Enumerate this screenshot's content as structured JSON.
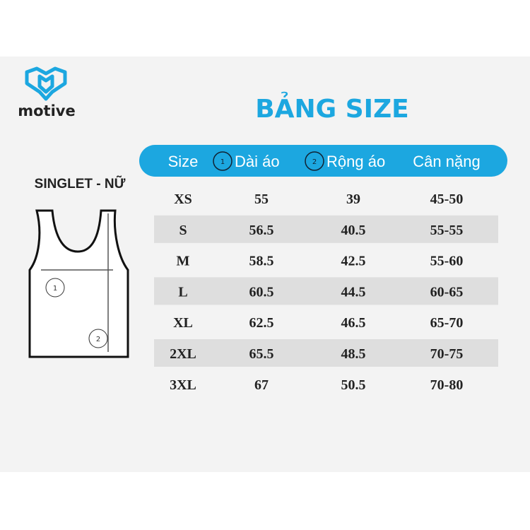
{
  "brand": "motive",
  "title": "BẢNG SIZE",
  "product": "SINGLET - NỮ",
  "diagram": {
    "markers": [
      "1",
      "2"
    ]
  },
  "table": {
    "header": [
      {
        "text": "Size"
      },
      {
        "badge": "1",
        "text": "Dài áo"
      },
      {
        "badge": "2",
        "text": "Rộng áo"
      },
      {
        "text": "Cân nặng"
      }
    ],
    "rows": [
      [
        "XS",
        "55",
        "39",
        "45-50"
      ],
      [
        "S",
        "56.5",
        "40.5",
        "55-55"
      ],
      [
        "M",
        "58.5",
        "42.5",
        "55-60"
      ],
      [
        "L",
        "60.5",
        "44.5",
        "60-65"
      ],
      [
        "XL",
        "62.5",
        "46.5",
        "65-70"
      ],
      [
        "2XL",
        "65.5",
        "48.5",
        "70-75"
      ],
      [
        "3XL",
        "67",
        "50.5",
        "70-80"
      ]
    ]
  }
}
